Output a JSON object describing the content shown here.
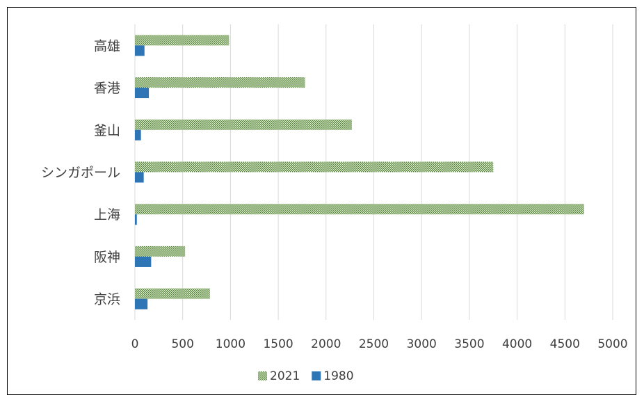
{
  "chart_data": {
    "type": "bar",
    "orientation": "horizontal",
    "title": "",
    "xlabel": "",
    "ylabel": "",
    "categories": [
      "高雄",
      "香港",
      "釜山",
      "シンガポール",
      "上海",
      "阪神",
      "京浜"
    ],
    "series": [
      {
        "name": "2021",
        "values": [
          985,
          1780,
          2270,
          3750,
          4700,
          525,
          785
        ],
        "color": "#70ad47",
        "fill": "checkered-pattern"
      },
      {
        "name": "1980",
        "values": [
          100,
          146,
          63,
          92,
          20,
          170,
          132
        ],
        "color": "#2e75b6",
        "fill": "solid"
      }
    ],
    "xlim": [
      0,
      5000
    ],
    "xticks": [
      "0",
      "500",
      "1000",
      "1500",
      "2000",
      "2500",
      "3000",
      "3500",
      "4000",
      "4500",
      "5000"
    ],
    "grid": true,
    "legend_position": "bottom"
  }
}
